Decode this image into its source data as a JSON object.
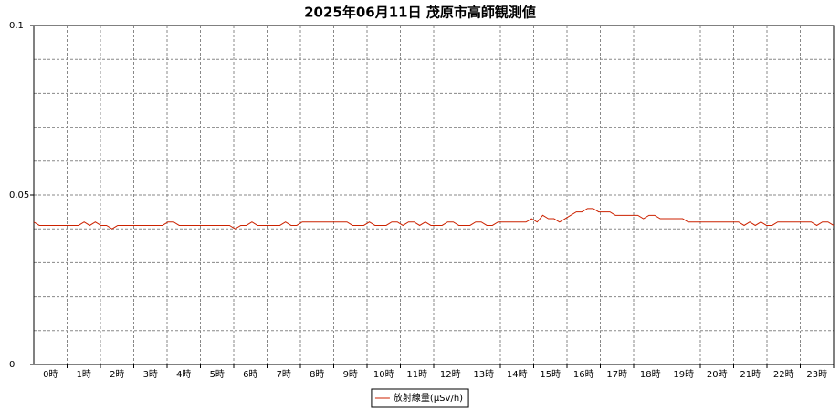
{
  "chart_data": {
    "type": "line",
    "title": "2025年06月11日 茂原市高師観測値",
    "xtick_labels": [
      "0時",
      "1時",
      "2時",
      "3時",
      "4時",
      "5時",
      "6時",
      "7時",
      "8時",
      "9時",
      "10時",
      "11時",
      "12時",
      "13時",
      "14時",
      "15時",
      "16時",
      "17時",
      "18時",
      "19時",
      "20時",
      "21時",
      "22時",
      "23時"
    ],
    "series": [
      {
        "name": "放射線量(μSv/h)",
        "color": "#cc2200",
        "values": [
          0.042,
          0.041,
          0.041,
          0.041,
          0.041,
          0.041,
          0.041,
          0.041,
          0.041,
          0.042,
          0.041,
          0.042,
          0.041,
          0.041,
          0.04,
          0.041,
          0.041,
          0.041,
          0.041,
          0.041,
          0.041,
          0.041,
          0.041,
          0.041,
          0.042,
          0.042,
          0.041,
          0.041,
          0.041,
          0.041,
          0.041,
          0.041,
          0.041,
          0.041,
          0.041,
          0.041,
          0.04,
          0.041,
          0.041,
          0.042,
          0.041,
          0.041,
          0.041,
          0.041,
          0.041,
          0.042,
          0.041,
          0.041,
          0.042,
          0.042,
          0.042,
          0.042,
          0.042,
          0.042,
          0.042,
          0.042,
          0.042,
          0.041,
          0.041,
          0.041,
          0.042,
          0.041,
          0.041,
          0.041,
          0.042,
          0.042,
          0.041,
          0.042,
          0.042,
          0.041,
          0.042,
          0.041,
          0.041,
          0.041,
          0.042,
          0.042,
          0.041,
          0.041,
          0.041,
          0.042,
          0.042,
          0.041,
          0.041,
          0.042,
          0.042,
          0.042,
          0.042,
          0.042,
          0.042,
          0.043,
          0.042,
          0.044,
          0.043,
          0.043,
          0.042,
          0.043,
          0.044,
          0.045,
          0.045,
          0.046,
          0.046,
          0.045,
          0.045,
          0.045,
          0.044,
          0.044,
          0.044,
          0.044,
          0.044,
          0.043,
          0.044,
          0.044,
          0.043,
          0.043,
          0.043,
          0.043,
          0.043,
          0.042,
          0.042,
          0.042,
          0.042,
          0.042,
          0.042,
          0.042,
          0.042,
          0.042,
          0.042,
          0.041,
          0.042,
          0.041,
          0.042,
          0.041,
          0.041,
          0.042,
          0.042,
          0.042,
          0.042,
          0.042,
          0.042,
          0.042,
          0.041,
          0.042,
          0.042,
          0.041
        ]
      }
    ],
    "ylim": [
      0,
      0.1
    ],
    "yticks": [
      0,
      0.05,
      0.1
    ],
    "minor_yticks": [
      0.01,
      0.02,
      0.03,
      0.04,
      0.06,
      0.07,
      0.08,
      0.09
    ],
    "grid": true,
    "legend": "bottom"
  }
}
